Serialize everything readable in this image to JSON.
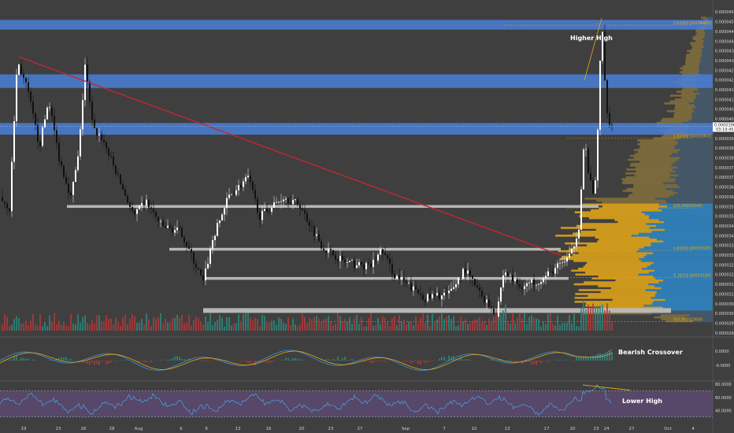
{
  "chart_data": {
    "type": "candlestick",
    "panes": [
      "price",
      "macd",
      "rsi"
    ],
    "price_axis": {
      "ylim": [
        2.88e-05,
        4.58e-05
      ],
      "ticks": [
        "0.00004550",
        "0.00004500",
        "0.00004450",
        "0.00004400",
        "0.00004350",
        "0.00004300",
        "0.00004250",
        "0.00004200",
        "0.00004150",
        "0.00004100",
        "0.00004050",
        "0.00004000",
        "0.00003950",
        "0.00003900",
        "0.00003850",
        "0.00003800",
        "0.00003750",
        "0.00003700",
        "0.00003650",
        "0.00003600",
        "0.00003550",
        "0.00003500",
        "0.00003450",
        "0.00003400",
        "0.00003350",
        "0.00003300",
        "0.00003250",
        "0.00003200",
        "0.00003150",
        "0.00003100",
        "0.00003050",
        "0.00003000",
        "0.00002950",
        "0.00002900"
      ],
      "current_price": "0.00003963",
      "countdown": "03:19:45"
    },
    "x_ticks": [
      "19",
      "23",
      "26",
      "28",
      "Aug",
      "6",
      "9",
      "13",
      "16",
      "20",
      "23",
      "27",
      "Sep",
      "7",
      "10",
      "13",
      "17",
      "20",
      "23",
      "24",
      "27",
      "Oct",
      "4"
    ],
    "fib_levels": [
      {
        "label": "2.618(0.00004483)",
        "value": 4.483e-05
      },
      {
        "label": "1.618(0.00003903)",
        "value": 3.903e-05
      },
      {
        "label": "1(0.00003543)",
        "value": 3.543e-05
      },
      {
        "label": "0.618(0.00003325)",
        "value": 3.325e-05
      },
      {
        "label": "0.382(0.00003185)",
        "value": 3.185e-05
      },
      {
        "label": "0(0.00002959)",
        "value": 2.959e-05
      }
    ],
    "resistance_zones": [
      {
        "low": 4.46e-05,
        "high": 4.51e-05
      },
      {
        "low": 4.16e-05,
        "high": 4.23e-05
      },
      {
        "low": 3.92e-05,
        "high": 3.98e-05
      }
    ],
    "support_lines": [
      3.55e-05,
      3.33e-05,
      3.18e-05,
      3.02e-05
    ],
    "annotations": {
      "higher_high": "Higher High",
      "bearish_crossover": "Bearish Crossover",
      "lower_high": "Lower High"
    },
    "macd_axis": {
      "ticks": [
        "0.0000",
        "-0.0000"
      ]
    },
    "rsi_axis": {
      "ticks": [
        "80.0000",
        "60.0000",
        "40.0000"
      ],
      "ylim": [
        20,
        85
      ]
    }
  }
}
